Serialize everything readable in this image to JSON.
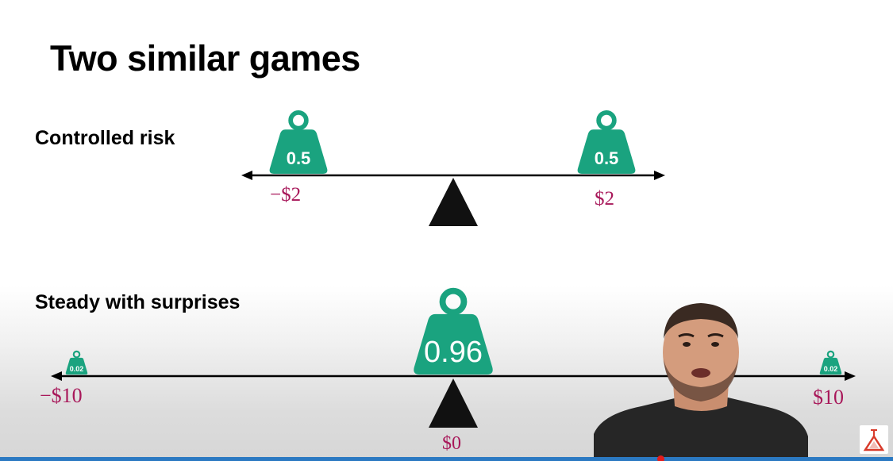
{
  "slide": {
    "title": "Two similar games"
  },
  "games": {
    "controlled_risk": {
      "label": "Controlled risk",
      "left_weight": "0.5",
      "right_weight": "0.5",
      "left_value": "−$2",
      "right_value": "$2"
    },
    "steady_with_surprises": {
      "label": "Steady with surprises",
      "left_weight": "0.02",
      "center_weight": "0.96",
      "right_weight": "0.02",
      "left_value": "−$10",
      "center_value": "$0",
      "right_value": "$10"
    }
  },
  "colors": {
    "weight_fill": "#1aa37f",
    "value_text": "#a8185a",
    "fulcrum": "#111111",
    "progress": "#2b79c2"
  },
  "video": {
    "progress_fraction": 0.74
  }
}
